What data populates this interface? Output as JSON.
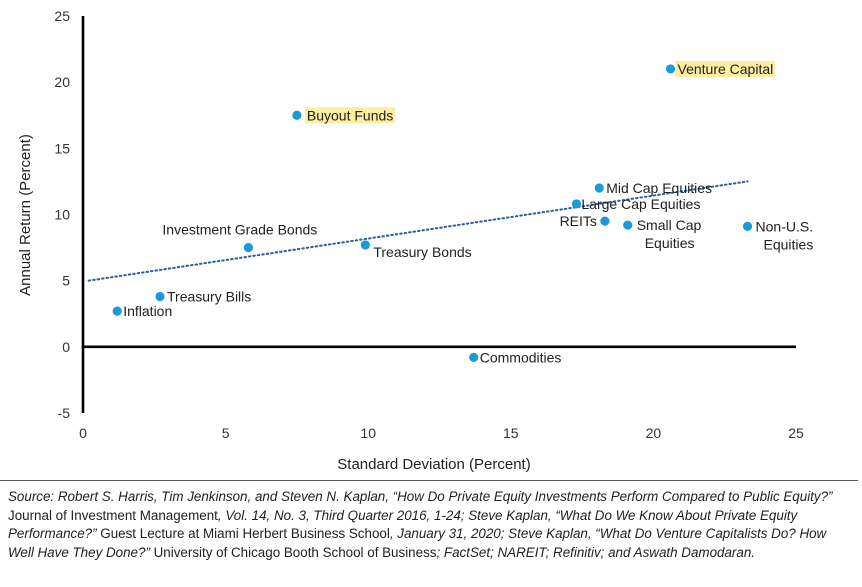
{
  "chart_data": {
    "type": "scatter",
    "xlabel": "Standard Deviation (Percent)",
    "ylabel": "Annual Return (Percent)",
    "xlim": [
      0,
      25
    ],
    "ylim": [
      -5,
      25
    ],
    "xticks": [
      "0",
      "5",
      "10",
      "15",
      "20",
      "25"
    ],
    "yticks": [
      "-5",
      "0",
      "5",
      "10",
      "15",
      "20",
      "25"
    ],
    "grid": false,
    "legend": "none",
    "marker_color": "#1a9ad6",
    "highlight_color": "#fdeda0",
    "trendline": {
      "style": "dotted",
      "color": "#2a5aa8",
      "x": [
        0.2,
        23.3
      ],
      "y": [
        5.0,
        12.5
      ]
    },
    "points": [
      {
        "label": "Inflation",
        "x": 1.2,
        "y": 2.7
      },
      {
        "label": "Treasury Bills",
        "x": 2.7,
        "y": 3.8
      },
      {
        "label": "Investment Grade Bonds",
        "x": 5.8,
        "y": 7.5
      },
      {
        "label": "Buyout Funds",
        "x": 7.5,
        "y": 17.5,
        "highlight": true
      },
      {
        "label": "Treasury Bonds",
        "x": 9.9,
        "y": 7.7
      },
      {
        "label": "Commodities",
        "x": 13.7,
        "y": -0.8
      },
      {
        "label": "Large Cap Equities",
        "x": 17.3,
        "y": 10.8
      },
      {
        "label": "Mid Cap Equities",
        "x": 18.1,
        "y": 12.0
      },
      {
        "label": "REITs",
        "x": 18.3,
        "y": 9.5
      },
      {
        "label": "Small Cap Equities",
        "x": 19.1,
        "y": 9.2
      },
      {
        "label": "Venture Capital",
        "x": 20.6,
        "y": 21.0,
        "highlight": true
      },
      {
        "label": "Non-U.S. Equities",
        "x": 23.3,
        "y": 9.1
      }
    ]
  },
  "source_note": {
    "p1": "Source: Robert S. Harris, Tim Jenkinson, and Steven N. Kaplan, “How Do Private Equity Investments Perform Compared to Public Equity?” ",
    "p2": "Journal of Investment Management",
    "p3": ", Vol. 14, No. 3, Third Quarter 2016, 1-24; Steve Kaplan, “What Do We Know About Private Equity Performance?” ",
    "p4": "Guest Lecture at Miami Herbert Business School",
    "p5": ", January 31, 2020; Steve Kaplan, “What Do Venture Capitalists Do? How Well Have They Done?” ",
    "p6": "University of Chicago Booth School of Business",
    "p7": "; FactSet; NAREIT; Refinitiv; and Aswath Damodaran."
  }
}
